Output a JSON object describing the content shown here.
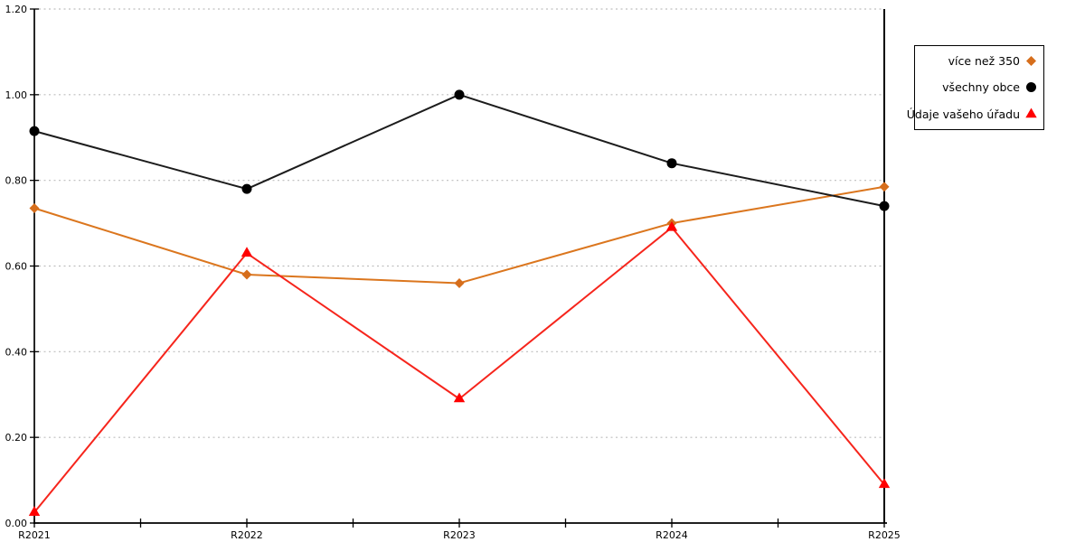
{
  "chart_data": {
    "type": "line",
    "categories": [
      "R2021",
      "R2022",
      "R2023",
      "R2024",
      "R2025"
    ],
    "series": [
      {
        "name": "více než 350",
        "marker": "diamond",
        "marker_color": "#D66E1C",
        "line_color": "#DB761E",
        "values": [
          0.735,
          0.58,
          0.56,
          0.7,
          0.785
        ]
      },
      {
        "name": "všechny obce",
        "marker": "circle",
        "marker_color": "#000000",
        "line_color": "#1C1C1C",
        "values": [
          0.915,
          0.78,
          1.0,
          0.84,
          0.74
        ]
      },
      {
        "name": "Údaje vašeho úřadu",
        "marker": "triangle",
        "marker_color": "#FF0000",
        "line_color": "#F6251C",
        "values": [
          0.025,
          0.63,
          0.29,
          0.69,
          0.09
        ]
      }
    ],
    "title": "",
    "xlabel": "",
    "ylabel": "",
    "ylim": [
      0,
      1.2
    ],
    "y_tick_labels": [
      "0.00",
      "0.20",
      "0.40",
      "0.60",
      "0.80",
      "1.00",
      "1.20"
    ],
    "grid": "dotted-horizontal",
    "grid_color": "#BFBFBF",
    "axis_color": "#000000",
    "legend_position": "outside-top-right"
  }
}
